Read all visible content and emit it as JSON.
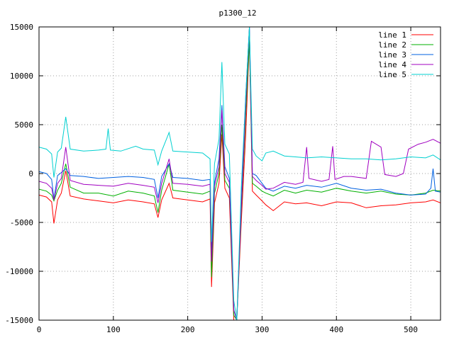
{
  "chart_data": {
    "type": "line",
    "title": "p1300_12",
    "xlabel": "",
    "ylabel": "",
    "xlim": [
      0,
      540
    ],
    "ylim": [
      -15000,
      15000
    ],
    "x_ticks": [
      0,
      100,
      200,
      300,
      400,
      500
    ],
    "y_ticks": [
      -15000,
      -10000,
      -5000,
      0,
      5000,
      10000,
      15000
    ],
    "grid": true,
    "legend_position": "top-right",
    "series": [
      {
        "name": "line 1",
        "color": "#ff0000",
        "points": [
          [
            0,
            -2200
          ],
          [
            10,
            -2400
          ],
          [
            17,
            -2900
          ],
          [
            20,
            -5100
          ],
          [
            25,
            -2700
          ],
          [
            30,
            -2000
          ],
          [
            36,
            300
          ],
          [
            42,
            -2300
          ],
          [
            60,
            -2600
          ],
          [
            80,
            -2800
          ],
          [
            100,
            -3000
          ],
          [
            120,
            -2700
          ],
          [
            140,
            -2900
          ],
          [
            155,
            -3100
          ],
          [
            160,
            -4500
          ],
          [
            165,
            -2700
          ],
          [
            175,
            -1000
          ],
          [
            180,
            -2500
          ],
          [
            200,
            -2700
          ],
          [
            220,
            -2900
          ],
          [
            230,
            -2600
          ],
          [
            232,
            -11600
          ],
          [
            236,
            -3000
          ],
          [
            242,
            -1000
          ],
          [
            246,
            4000
          ],
          [
            250,
            -1500
          ],
          [
            256,
            -2500
          ],
          [
            262,
            -15000
          ],
          [
            266,
            -15000
          ],
          [
            272,
            -5000
          ],
          [
            278,
            4000
          ],
          [
            283,
            13700
          ],
          [
            287,
            -1800
          ],
          [
            292,
            -2200
          ],
          [
            300,
            -2800
          ],
          [
            305,
            -3200
          ],
          [
            315,
            -3800
          ],
          [
            330,
            -2900
          ],
          [
            345,
            -3100
          ],
          [
            360,
            -3000
          ],
          [
            380,
            -3300
          ],
          [
            400,
            -2900
          ],
          [
            420,
            -3000
          ],
          [
            440,
            -3500
          ],
          [
            460,
            -3300
          ],
          [
            480,
            -3200
          ],
          [
            500,
            -3000
          ],
          [
            520,
            -2900
          ],
          [
            530,
            -2700
          ],
          [
            540,
            -3000
          ]
        ]
      },
      {
        "name": "line 2",
        "color": "#00b000",
        "points": [
          [
            0,
            -1600
          ],
          [
            10,
            -1800
          ],
          [
            17,
            -2200
          ],
          [
            20,
            -2800
          ],
          [
            25,
            -1700
          ],
          [
            30,
            -1000
          ],
          [
            36,
            1000
          ],
          [
            42,
            -1400
          ],
          [
            60,
            -2000
          ],
          [
            80,
            -2000
          ],
          [
            100,
            -2300
          ],
          [
            120,
            -1800
          ],
          [
            140,
            -2000
          ],
          [
            155,
            -2300
          ],
          [
            160,
            -4000
          ],
          [
            165,
            -1700
          ],
          [
            175,
            1000
          ],
          [
            180,
            -1700
          ],
          [
            200,
            -1900
          ],
          [
            220,
            -2100
          ],
          [
            230,
            -1800
          ],
          [
            232,
            -10600
          ],
          [
            236,
            -2000
          ],
          [
            242,
            0
          ],
          [
            246,
            5000
          ],
          [
            250,
            -700
          ],
          [
            256,
            -1500
          ],
          [
            262,
            -14500
          ],
          [
            266,
            -15000
          ],
          [
            272,
            -4000
          ],
          [
            278,
            6000
          ],
          [
            283,
            13600
          ],
          [
            287,
            -1000
          ],
          [
            292,
            -1300
          ],
          [
            300,
            -1800
          ],
          [
            305,
            -2000
          ],
          [
            315,
            -2300
          ],
          [
            330,
            -1700
          ],
          [
            345,
            -2000
          ],
          [
            360,
            -1700
          ],
          [
            380,
            -1900
          ],
          [
            400,
            -1500
          ],
          [
            420,
            -1800
          ],
          [
            440,
            -2000
          ],
          [
            460,
            -1800
          ],
          [
            480,
            -2100
          ],
          [
            500,
            -2200
          ],
          [
            520,
            -2000
          ],
          [
            530,
            -1700
          ],
          [
            540,
            -1800
          ]
        ]
      },
      {
        "name": "line 3",
        "color": "#0060e0",
        "points": [
          [
            0,
            200
          ],
          [
            10,
            0
          ],
          [
            17,
            -600
          ],
          [
            20,
            -2600
          ],
          [
            25,
            -200
          ],
          [
            30,
            100
          ],
          [
            36,
            500
          ],
          [
            42,
            -200
          ],
          [
            60,
            -300
          ],
          [
            80,
            -500
          ],
          [
            100,
            -400
          ],
          [
            120,
            -300
          ],
          [
            140,
            -400
          ],
          [
            155,
            -600
          ],
          [
            160,
            -2500
          ],
          [
            165,
            -300
          ],
          [
            175,
            1000
          ],
          [
            180,
            -400
          ],
          [
            200,
            -500
          ],
          [
            220,
            -700
          ],
          [
            230,
            -600
          ],
          [
            232,
            -8000
          ],
          [
            236,
            -900
          ],
          [
            242,
            1500
          ],
          [
            246,
            7000
          ],
          [
            250,
            700
          ],
          [
            256,
            -500
          ],
          [
            262,
            -14000
          ],
          [
            266,
            -15000
          ],
          [
            272,
            -3000
          ],
          [
            278,
            8000
          ],
          [
            283,
            15000
          ],
          [
            287,
            0
          ],
          [
            292,
            -200
          ],
          [
            300,
            -1000
          ],
          [
            305,
            -1500
          ],
          [
            315,
            -1800
          ],
          [
            330,
            -1300
          ],
          [
            345,
            -1500
          ],
          [
            360,
            -1200
          ],
          [
            380,
            -1400
          ],
          [
            400,
            -1000
          ],
          [
            420,
            -1500
          ],
          [
            440,
            -1700
          ],
          [
            460,
            -1600
          ],
          [
            480,
            -2000
          ],
          [
            500,
            -2200
          ],
          [
            520,
            -2100
          ],
          [
            527,
            -1500
          ],
          [
            530,
            500
          ],
          [
            533,
            -1800
          ],
          [
            540,
            -1900
          ]
        ]
      },
      {
        "name": "line 4",
        "color": "#a000c0",
        "points": [
          [
            0,
            -800
          ],
          [
            10,
            -1000
          ],
          [
            17,
            -1500
          ],
          [
            20,
            -2700
          ],
          [
            25,
            -1000
          ],
          [
            30,
            -500
          ],
          [
            36,
            2700
          ],
          [
            42,
            -700
          ],
          [
            60,
            -1100
          ],
          [
            80,
            -1200
          ],
          [
            100,
            -1300
          ],
          [
            120,
            -1000
          ],
          [
            140,
            -1200
          ],
          [
            155,
            -1400
          ],
          [
            160,
            -3000
          ],
          [
            165,
            -1000
          ],
          [
            175,
            1500
          ],
          [
            180,
            -1000
          ],
          [
            200,
            -1100
          ],
          [
            220,
            -1300
          ],
          [
            230,
            -1100
          ],
          [
            232,
            -9000
          ],
          [
            236,
            -1300
          ],
          [
            242,
            700
          ],
          [
            246,
            6500
          ],
          [
            250,
            0
          ],
          [
            256,
            -900
          ],
          [
            262,
            -14000
          ],
          [
            266,
            -15000
          ],
          [
            272,
            -3500
          ],
          [
            278,
            7000
          ],
          [
            283,
            15000
          ],
          [
            287,
            -300
          ],
          [
            292,
            -700
          ],
          [
            300,
            -1200
          ],
          [
            305,
            -1600
          ],
          [
            315,
            -1500
          ],
          [
            330,
            -900
          ],
          [
            345,
            -1100
          ],
          [
            355,
            -900
          ],
          [
            360,
            2700
          ],
          [
            363,
            -500
          ],
          [
            380,
            -800
          ],
          [
            390,
            -600
          ],
          [
            395,
            2800
          ],
          [
            398,
            -600
          ],
          [
            410,
            -300
          ],
          [
            420,
            -300
          ],
          [
            430,
            -400
          ],
          [
            440,
            -500
          ],
          [
            447,
            3300
          ],
          [
            460,
            2700
          ],
          [
            465,
            -100
          ],
          [
            480,
            -300
          ],
          [
            490,
            0
          ],
          [
            497,
            2500
          ],
          [
            510,
            3000
          ],
          [
            520,
            3200
          ],
          [
            530,
            3500
          ],
          [
            540,
            3100
          ]
        ]
      },
      {
        "name": "line 5",
        "color": "#00d0d0",
        "points": [
          [
            0,
            2700
          ],
          [
            10,
            2500
          ],
          [
            17,
            2000
          ],
          [
            20,
            -400
          ],
          [
            25,
            2200
          ],
          [
            30,
            2600
          ],
          [
            36,
            5800
          ],
          [
            42,
            2500
          ],
          [
            60,
            2300
          ],
          [
            80,
            2400
          ],
          [
            90,
            2500
          ],
          [
            93,
            4600
          ],
          [
            96,
            2400
          ],
          [
            110,
            2300
          ],
          [
            130,
            2800
          ],
          [
            140,
            2500
          ],
          [
            155,
            2400
          ],
          [
            160,
            900
          ],
          [
            165,
            2300
          ],
          [
            175,
            4200
          ],
          [
            180,
            2300
          ],
          [
            200,
            2200
          ],
          [
            220,
            2100
          ],
          [
            230,
            1500
          ],
          [
            232,
            -7000
          ],
          [
            236,
            1000
          ],
          [
            242,
            3500
          ],
          [
            246,
            11400
          ],
          [
            250,
            3000
          ],
          [
            256,
            2000
          ],
          [
            262,
            -13000
          ],
          [
            266,
            -15000
          ],
          [
            272,
            -1500
          ],
          [
            278,
            8000
          ],
          [
            283,
            15000
          ],
          [
            287,
            2500
          ],
          [
            292,
            1800
          ],
          [
            300,
            1300
          ],
          [
            305,
            2100
          ],
          [
            315,
            2300
          ],
          [
            330,
            1800
          ],
          [
            345,
            1700
          ],
          [
            360,
            1600
          ],
          [
            380,
            1700
          ],
          [
            400,
            1600
          ],
          [
            420,
            1500
          ],
          [
            440,
            1500
          ],
          [
            460,
            1400
          ],
          [
            480,
            1500
          ],
          [
            500,
            1700
          ],
          [
            520,
            1600
          ],
          [
            530,
            1900
          ],
          [
            540,
            1400
          ]
        ]
      }
    ]
  }
}
